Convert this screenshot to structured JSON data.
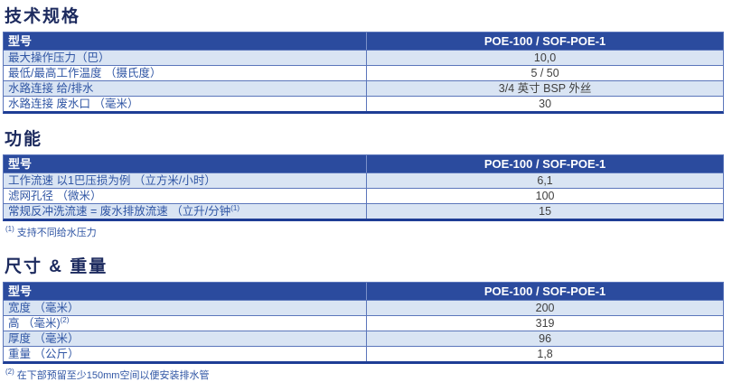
{
  "colors": {
    "header_bg": "#2b4b9e",
    "header_text": "#ffffff",
    "row_alt_bg": "#d9e4f3",
    "label_text": "#2f55a4",
    "value_text": "#3f3f3f",
    "border_blue": "#5b76bb",
    "table_bottom_border": "#1e3d95",
    "title_text": "#1c2a5e"
  },
  "sections": [
    {
      "title": "技术规格",
      "header": {
        "label": "型号",
        "value": "POE-100 / SOF-POE-1"
      },
      "rows": [
        {
          "label": "最大操作压力（巴）",
          "value": "10,0"
        },
        {
          "label": "最低/最高工作温度 （摄氏度）",
          "value": "5 / 50"
        },
        {
          "label": "水路连接 给/排水",
          "value": "3/4 英寸 BSP 外丝"
        },
        {
          "label": "水路连接 废水口 （毫米）",
          "value": "30"
        }
      ]
    },
    {
      "title": "功能",
      "header": {
        "label": "型号",
        "value": "POE-100 / SOF-POE-1"
      },
      "rows": [
        {
          "label": "工作流速 以1巴压损为例 （立方米/小时）",
          "value": "6,1"
        },
        {
          "label": "滤网孔径 （微米）",
          "value": "100"
        },
        {
          "label": "常规反冲洗流速 = 废水排放流速 （立升/分钟",
          "label_sup": "(1)",
          "value": "15"
        }
      ],
      "footnote": {
        "sup": "(1)",
        "text": "支持不同给水压力"
      }
    },
    {
      "title": "尺寸 & 重量",
      "header": {
        "label": "型号",
        "value": "POE-100 / SOF-POE-1"
      },
      "rows": [
        {
          "label": "宽度 （毫米）",
          "value": "200"
        },
        {
          "label": "高 （毫米)",
          "label_sup": "(2)",
          "value": "319"
        },
        {
          "label": "厚度 （毫米）",
          "value": "96"
        },
        {
          "label": "重量 （公斤）",
          "value": "1,8"
        }
      ],
      "footnote": {
        "sup": "(2)",
        "text": "在下部预留至少150mm空间以便安装排水管"
      }
    }
  ]
}
